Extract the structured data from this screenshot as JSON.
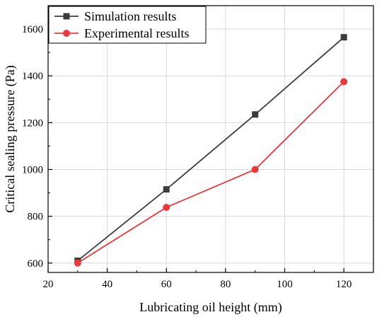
{
  "chart_data": {
    "type": "line",
    "title": "",
    "xlabel": "Lubricating oil height (mm)",
    "ylabel": "Critical sealing pressure (Pa)",
    "xlim": [
      20,
      130
    ],
    "ylim": [
      560,
      1700
    ],
    "xticks": [
      20,
      40,
      60,
      80,
      100,
      120
    ],
    "yticks": [
      600,
      800,
      1000,
      1200,
      1400,
      1600
    ],
    "xtick_labels": [
      "20",
      "40",
      "60",
      "80",
      "100",
      "120"
    ],
    "ytick_labels": [
      "600",
      "800",
      "1000",
      "1200",
      "1400",
      "1600"
    ],
    "grid": true,
    "legend_position": "top-left",
    "series": [
      {
        "name": "Simulation results",
        "color": "#3c3c3c",
        "marker": "square",
        "x": [
          30,
          60,
          90,
          120
        ],
        "y": [
          610,
          915,
          1235,
          1565
        ]
      },
      {
        "name": "Experimental results",
        "color": "#e8393b",
        "marker": "circle",
        "x": [
          30,
          60,
          90,
          120
        ],
        "y": [
          600,
          838,
          1000,
          1375
        ]
      }
    ]
  }
}
